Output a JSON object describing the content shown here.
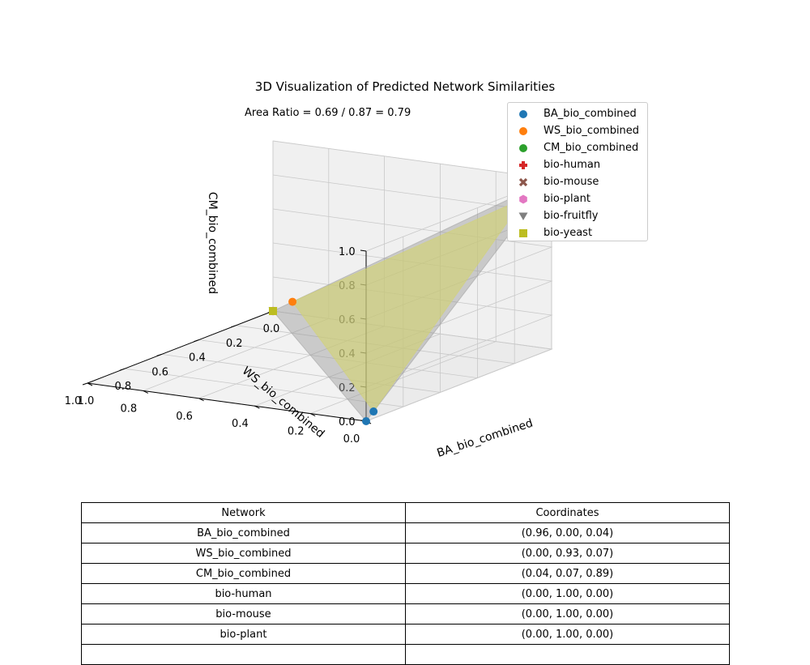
{
  "chart_data": {
    "type": "scatter",
    "title": "3D Visualization of Predicted Network Similarities",
    "annotation": "Area Ratio = 0.69 / 0.87 = 0.79",
    "xlabel": "BA_bio_combined",
    "ylabel": "WS_bio_combined",
    "zlabel": "CM_bio_combined",
    "xlim": [
      0,
      1
    ],
    "ylim": [
      0,
      1
    ],
    "zlim": [
      0,
      1
    ],
    "x_ticks": [
      "0.0",
      "0.2",
      "0.4",
      "0.6",
      "0.8",
      "1.0"
    ],
    "y_ticks": [
      "0.0",
      "0.2",
      "0.4",
      "0.6",
      "0.8",
      "1.0"
    ],
    "z_ticks": [
      "0.0",
      "0.2",
      "0.4",
      "0.6",
      "0.8",
      "1.0"
    ],
    "grid": true,
    "legend_position": "top-right",
    "series": [
      {
        "name": "BA_bio_combined",
        "color": "#1f77b4",
        "marker": "circle",
        "points": [
          [
            1,
            0,
            0
          ],
          [
            0.96,
            0.0,
            0.04
          ]
        ]
      },
      {
        "name": "WS_bio_combined",
        "color": "#ff7f0e",
        "marker": "circle",
        "points": [
          [
            0,
            1,
            0
          ],
          [
            0.0,
            0.93,
            0.07
          ]
        ]
      },
      {
        "name": "CM_bio_combined",
        "color": "#2ca02c",
        "marker": "circle",
        "points": [
          [
            0,
            0,
            1
          ],
          [
            0.04,
            0.07,
            0.89
          ]
        ]
      },
      {
        "name": "bio-human",
        "color": "#d62728",
        "marker": "plus",
        "points": [
          [
            0.0,
            1.0,
            0.0
          ]
        ]
      },
      {
        "name": "bio-mouse",
        "color": "#8c564b",
        "marker": "x",
        "points": [
          [
            0.0,
            1.0,
            0.0
          ]
        ]
      },
      {
        "name": "bio-plant",
        "color": "#e377c2",
        "marker": "hexagon",
        "points": [
          [
            0.0,
            1.0,
            0.0
          ]
        ]
      },
      {
        "name": "bio-fruitfly",
        "color": "#7f7f7f",
        "marker": "triangle-down",
        "points": [
          [
            0.0,
            1.0,
            0.0
          ]
        ]
      },
      {
        "name": "bio-yeast",
        "color": "#bcbd22",
        "marker": "square",
        "points": [
          [
            0.0,
            1.0,
            0.0
          ]
        ]
      }
    ],
    "triangles": [
      {
        "vertices": [
          [
            1,
            0,
            0
          ],
          [
            0,
            1,
            0
          ],
          [
            0,
            0,
            1
          ]
        ],
        "color": "#999999"
      },
      {
        "vertices": [
          [
            0.96,
            0.0,
            0.04
          ],
          [
            0.0,
            0.93,
            0.07
          ],
          [
            0.04,
            0.07,
            0.89
          ]
        ],
        "color": "#d4d46e"
      }
    ]
  },
  "table": {
    "headers": [
      "Network",
      "Coordinates"
    ],
    "rows": [
      [
        "BA_bio_combined",
        "(0.96, 0.00, 0.04)"
      ],
      [
        "WS_bio_combined",
        "(0.00, 0.93, 0.07)"
      ],
      [
        "CM_bio_combined",
        "(0.04, 0.07, 0.89)"
      ],
      [
        "bio-human",
        "(0.00, 1.00, 0.00)"
      ],
      [
        "bio-mouse",
        "(0.00, 1.00, 0.00)"
      ],
      [
        "bio-plant",
        "(0.00, 1.00, 0.00)"
      ]
    ]
  }
}
